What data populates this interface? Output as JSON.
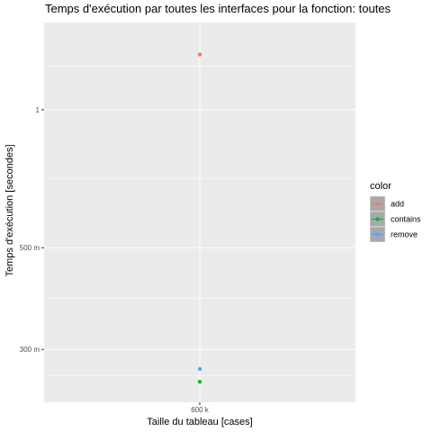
{
  "chart_data": {
    "type": "scatter",
    "title": "Temps d'exécution par toutes les interfaces pour la fonction: toutes",
    "xlabel": "Taille du tableau [cases]",
    "ylabel": "Temps d'exécution [secondes]",
    "y_scale": "log",
    "grid": true,
    "x_categories": [
      "600 k"
    ],
    "y_ticks": [
      {
        "label": "1",
        "value": 1.0
      },
      {
        "label": "500 m",
        "value": 0.5
      },
      {
        "label": "300 m",
        "value": 0.3
      }
    ],
    "ylim": [
      0.23,
      1.55
    ],
    "legend": {
      "title": "color",
      "placement": "right",
      "entries": [
        "add",
        "contains",
        "remove"
      ]
    },
    "series": [
      {
        "name": "add",
        "color": "#F8766D",
        "points": [
          {
            "x": "600 k",
            "y": 1.32
          }
        ]
      },
      {
        "name": "contains",
        "color": "#00BA38",
        "points": [
          {
            "x": "600 k",
            "y": 0.255
          }
        ]
      },
      {
        "name": "remove",
        "color": "#619CFF",
        "points": [
          {
            "x": "600 k",
            "y": 0.272
          }
        ]
      }
    ]
  }
}
